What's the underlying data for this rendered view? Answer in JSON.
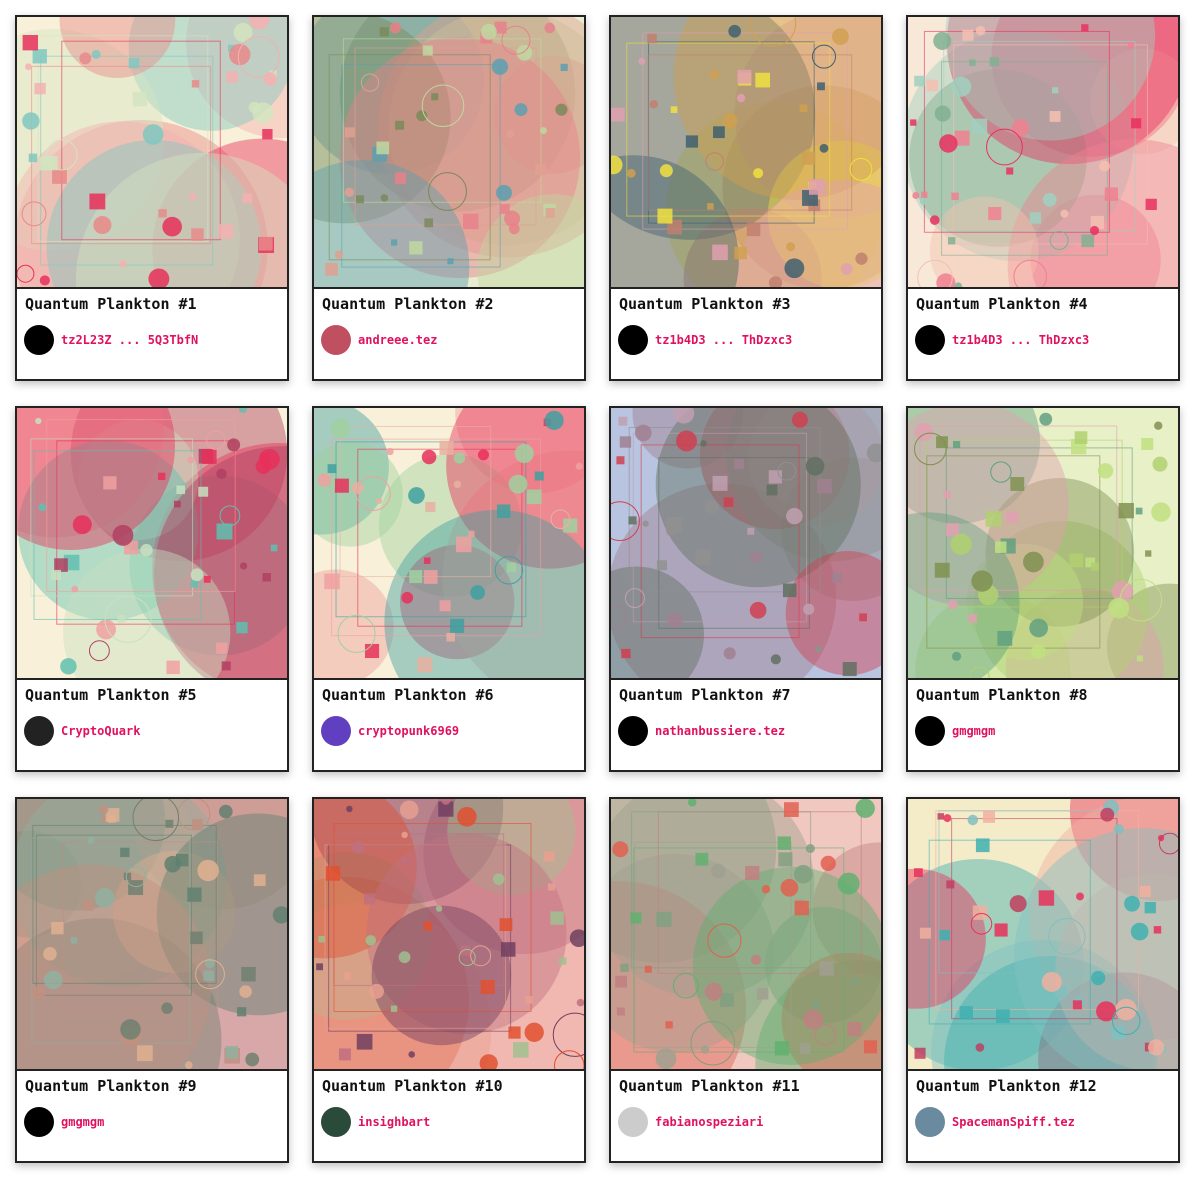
{
  "cards": [
    {
      "title": "Quantum Plankton #1",
      "owner": "tz2L23Z ... 5Q3TbfN"
    },
    {
      "title": "Quantum Plankton #2",
      "owner": "andreee.tez"
    },
    {
      "title": "Quantum Plankton #3",
      "owner": "tz1b4D3 ... ThDzxc3"
    },
    {
      "title": "Quantum Plankton #4",
      "owner": "tz1b4D3 ... ThDzxc3"
    },
    {
      "title": "Quantum Plankton #5",
      "owner": "CryptoQuark"
    },
    {
      "title": "Quantum Plankton #6",
      "owner": "cryptopunk6969"
    },
    {
      "title": "Quantum Plankton #7",
      "owner": "nathanbussiere.tez"
    },
    {
      "title": "Quantum Plankton #8",
      "owner": "gmgmgm"
    },
    {
      "title": "Quantum Plankton #9",
      "owner": "gmgmgm"
    },
    {
      "title": "Quantum Plankton #10",
      "owner": "insighbart"
    },
    {
      "title": "Quantum Plankton #11",
      "owner": "fabianospeziari"
    },
    {
      "title": "Quantum Plankton #12",
      "owner": "SpacemanSpiff.tez"
    }
  ]
}
